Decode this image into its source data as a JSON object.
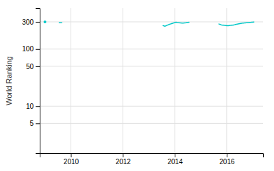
{
  "chart_data": {
    "type": "line",
    "ylabel": "World Ranking",
    "log": "y",
    "grid": true,
    "color": "#00c8c8",
    "xlim": [
      2008.8,
      2017.4
    ],
    "xticks": [
      2010,
      2012,
      2014,
      2016
    ],
    "ylim": [
      1.5,
      520
    ],
    "yticks": [
      5,
      10,
      50,
      100,
      300
    ],
    "series": [
      {
        "marker": "circle",
        "x": [
          2009.0
        ],
        "values": [
          300
        ]
      },
      {
        "x": [
          2009.55,
          2009.65
        ],
        "values": [
          289,
          290
        ]
      },
      {
        "x": [
          2013.55,
          2013.58125,
          2013.6125,
          2013.64375,
          2013.675,
          2013.70625,
          2013.7375,
          2013.76875,
          2013.8,
          2013.83125,
          2013.8625,
          2013.89375,
          2013.925,
          2013.95625,
          2013.9875,
          2014.01875,
          2014.05,
          2014.08125,
          2014.1125,
          2014.14375,
          2014.175,
          2014.20625,
          2014.2375,
          2014.26875,
          2014.3,
          2014.33125,
          2014.3625,
          2014.39375,
          2014.425,
          2014.45625,
          2014.4875,
          2014.51875,
          2014.55
        ],
        "values": [
          258,
          255,
          252,
          254,
          258,
          262,
          265,
          268,
          272,
          275,
          278,
          281,
          284,
          287,
          290,
          293,
          295,
          293,
          291,
          290,
          289,
          288,
          287,
          286,
          285,
          286,
          287,
          288,
          289,
          291,
          293,
          294,
          295
        ]
      },
      {
        "x": [
          2015.7,
          2015.73375,
          2015.7675,
          2015.80125,
          2015.835,
          2015.86875,
          2015.9025,
          2015.93625,
          2015.97,
          2016.00375,
          2016.0375,
          2016.07125,
          2016.105,
          2016.13875,
          2016.1725,
          2016.20625,
          2016.24,
          2016.27375,
          2016.3075,
          2016.34125,
          2016.375,
          2016.40875,
          2016.4425,
          2016.47625,
          2016.51,
          2016.54375,
          2016.5775,
          2016.61125,
          2016.645,
          2016.67875,
          2016.7125,
          2016.74625,
          2016.78,
          2016.81375,
          2016.8475,
          2016.88125,
          2016.915,
          2016.94875,
          2016.9825,
          2017.01625,
          2017.05
        ],
        "values": [
          275,
          272,
          268,
          265,
          263,
          262,
          261,
          260,
          259,
          258,
          257,
          258,
          259,
          260,
          261,
          262,
          263,
          265,
          267,
          270,
          272,
          274,
          276,
          278,
          280,
          282,
          284,
          285,
          286,
          287,
          288,
          289,
          290,
          291,
          292,
          293,
          294,
          295,
          296,
          297,
          298
        ]
      }
    ]
  }
}
